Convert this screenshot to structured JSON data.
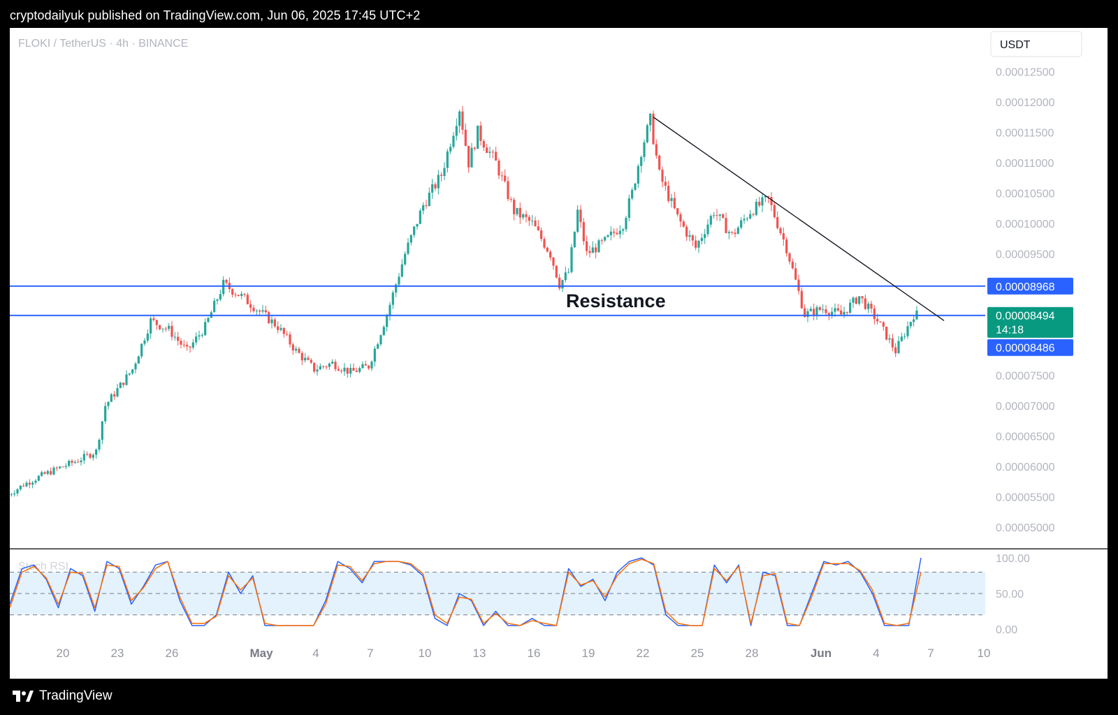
{
  "header": {
    "caption": "cryptodailyuk published on TradingView.com, Jun 06, 2025 17:45 UTC+2"
  },
  "footer": {
    "brand": "TradingView",
    "logo_icon": "tradingview-logo-icon"
  },
  "colors": {
    "up": "#26a69a",
    "down": "#ef5350",
    "line_blue": "#2962ff",
    "last_price_bg": "#089981",
    "rsi_k": "#2962ff",
    "rsi_d": "#ff6d00",
    "rsi_band": "#e3f2fd"
  },
  "chart_data": [
    {
      "type": "candlestick",
      "title": "FLOKI / TetherUS · 4h · BINANCE",
      "currency": "USDT",
      "y_ticks": [
        "0.00012500",
        "0.00012000",
        "0.00011500",
        "0.00011000",
        "0.00010500",
        "0.00010000",
        "0.00009500",
        "0.00007500",
        "0.00007000",
        "0.00006500",
        "0.00006000",
        "0.00005500",
        "0.00005000"
      ],
      "x_ticks": [
        "20",
        "23",
        "26",
        "May",
        "4",
        "7",
        "10",
        "13",
        "16",
        "19",
        "22",
        "25",
        "28",
        "Jun",
        "4",
        "7",
        "10"
      ],
      "grid": false,
      "ylim": [
        4.55e-05,
        0.000132
      ],
      "price_path": [
        [
          "Apr 17",
          5.5e-05
        ],
        [
          "Apr 18",
          5.7e-05
        ],
        [
          "Apr 19",
          5.85e-05
        ],
        [
          "Apr 20",
          5.98e-05
        ],
        [
          "Apr 21",
          6.1e-05
        ],
        [
          "Apr 22",
          6.25e-05
        ],
        [
          "Apr 22 12h",
          7e-05
        ],
        [
          "Apr 23",
          7.2e-05
        ],
        [
          "Apr 24",
          7.6e-05
        ],
        [
          "Apr 25",
          8.4e-05
        ],
        [
          "Apr 26",
          8.25e-05
        ],
        [
          "Apr 27",
          7.9e-05
        ],
        [
          "Apr 28",
          8.3e-05
        ],
        [
          "Apr 29",
          9e-05
        ],
        [
          "Apr 30",
          8.8e-05
        ],
        [
          "May 1",
          8.55e-05
        ],
        [
          "May 2",
          8.3e-05
        ],
        [
          "May 3",
          7.9e-05
        ],
        [
          "May 4",
          7.6e-05
        ],
        [
          "May 5",
          7.7e-05
        ],
        [
          "May 6",
          7.55e-05
        ],
        [
          "May 7",
          7.65e-05
        ],
        [
          "May 8",
          8.5e-05
        ],
        [
          "May 9",
          9.5e-05
        ],
        [
          "May 10",
          0.000103
        ],
        [
          "May 11",
          0.000108
        ],
        [
          "May 12",
          0.000119
        ],
        [
          "May 12 12h",
          0.00011
        ],
        [
          "May 13",
          0.000115
        ],
        [
          "May 14",
          0.00011
        ],
        [
          "May 15",
          0.000102
        ],
        [
          "May 16",
          0.0001
        ],
        [
          "May 17",
          9.5e-05
        ],
        [
          "May 17 12h",
          9e-05
        ],
        [
          "May 18",
          9.2e-05
        ],
        [
          "May 18 12h",
          0.000102
        ],
        [
          "May 19",
          9.5e-05
        ],
        [
          "May 20",
          9.7e-05
        ],
        [
          "May 21",
          0.0001
        ],
        [
          "May 21 12h",
          0.000105
        ],
        [
          "May 22",
          0.000112
        ],
        [
          "May 22 12h",
          0.000117
        ],
        [
          "May 23",
          0.000108
        ],
        [
          "May 24",
          0.000101
        ],
        [
          "May 25",
          9.6e-05
        ],
        [
          "May 26",
          0.000102
        ],
        [
          "May 27",
          9.8e-05
        ],
        [
          "May 28",
          0.000102
        ],
        [
          "May 29",
          0.000104
        ],
        [
          "May 30",
          9.6e-05
        ],
        [
          "May 31",
          8.5e-05
        ],
        [
          "Jun 1",
          8.6e-05
        ],
        [
          "Jun 2",
          8.5e-05
        ],
        [
          "Jun 3",
          8.8e-05
        ],
        [
          "Jun 4",
          8.4e-05
        ],
        [
          "Jun 5",
          7.9e-05
        ],
        [
          "Jun 6",
          8.5e-05
        ]
      ],
      "annotations": {
        "resistance_label": "Resistance",
        "resistance_upper": 8.968e-05,
        "resistance_lower": 8.486e-05,
        "upper_label": "0.00008968",
        "lower_label": "0.00008486",
        "last_price_label": "0.00008494",
        "countdown": "14:18",
        "trendline": [
          [
            "May 22 12h",
            0.0001175
          ],
          [
            "Jun 7 12h",
            8.4e-05
          ]
        ]
      }
    },
    {
      "type": "line",
      "title": "Stoch RSI",
      "y_ticks": [
        "100.00",
        "50.00",
        "0.00"
      ],
      "ylim": [
        0,
        100
      ],
      "bands": [
        20,
        50,
        80
      ],
      "series": [
        {
          "values": [
            35,
            85,
            90,
            70,
            30,
            85,
            75,
            25,
            95,
            85,
            35,
            60,
            90,
            95,
            40,
            5,
            5,
            20,
            80,
            50,
            75,
            5,
            5,
            5,
            5,
            5,
            40,
            95,
            85,
            65,
            95,
            95,
            95,
            90,
            75,
            15,
            5,
            50,
            40,
            5,
            25,
            5,
            5,
            15,
            5,
            5,
            85,
            60,
            70,
            40,
            80,
            95,
            100,
            90,
            20,
            5,
            5,
            5,
            90,
            65,
            90,
            5,
            80,
            75,
            5,
            5,
            50,
            95,
            90,
            95,
            80,
            50,
            5,
            5,
            5,
            100
          ]
        },
        {
          "values": [
            30,
            80,
            88,
            72,
            35,
            80,
            78,
            30,
            90,
            88,
            40,
            58,
            85,
            95,
            45,
            8,
            8,
            18,
            75,
            55,
            72,
            8,
            5,
            5,
            5,
            5,
            35,
            90,
            88,
            68,
            92,
            95,
            95,
            92,
            78,
            20,
            8,
            45,
            42,
            8,
            22,
            8,
            5,
            12,
            8,
            5,
            80,
            62,
            68,
            45,
            75,
            92,
            98,
            92,
            25,
            8,
            5,
            5,
            85,
            68,
            88,
            8,
            75,
            78,
            8,
            5,
            45,
            92,
            92,
            92,
            82,
            55,
            8,
            5,
            8,
            80
          ]
        }
      ]
    }
  ]
}
